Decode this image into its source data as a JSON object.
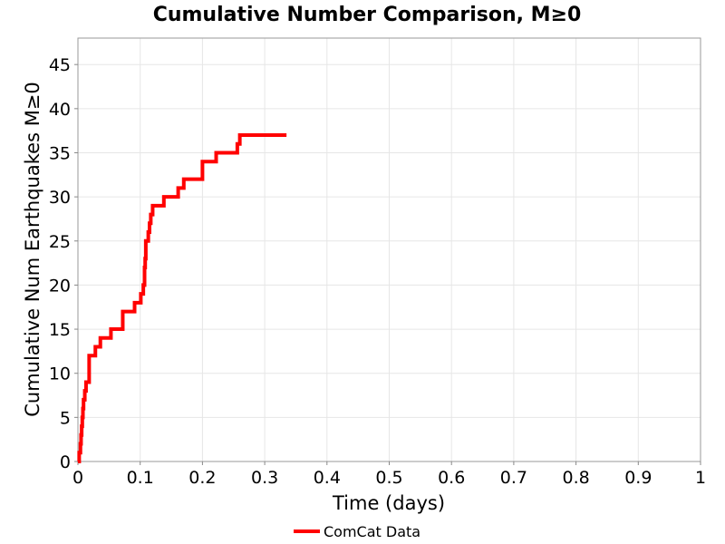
{
  "chart_data": {
    "type": "line",
    "title": "Cumulative Number Comparison, M≥0",
    "xlabel": "Time (days)",
    "ylabel": "Cumulative Num Earthquakes M≥0",
    "xlim": [
      0,
      1
    ],
    "ylim": [
      0,
      48
    ],
    "x_ticks": [
      0,
      0.1,
      0.2,
      0.3,
      0.4,
      0.5,
      0.6,
      0.7,
      0.8,
      0.9,
      1
    ],
    "x_tick_labels": [
      "0",
      "0.1",
      "0.2",
      "0.3",
      "0.4",
      "0.5",
      "0.6",
      "0.7",
      "0.8",
      "0.9",
      "1"
    ],
    "y_ticks": [
      0,
      5,
      10,
      15,
      20,
      25,
      30,
      35,
      40,
      45
    ],
    "y_tick_labels": [
      "0",
      "5",
      "10",
      "15",
      "20",
      "25",
      "30",
      "35",
      "40",
      "45"
    ],
    "grid": true,
    "legend_position": "bottom-center",
    "series": [
      {
        "name": "ComCat Data",
        "color": "#ff0000",
        "step": true,
        "x": [
          0,
          0.002,
          0.004,
          0.005,
          0.006,
          0.007,
          0.008,
          0.009,
          0.011,
          0.013,
          0.018,
          0.028,
          0.036,
          0.053,
          0.072,
          0.091,
          0.101,
          0.105,
          0.107,
          0.108,
          0.109,
          0.113,
          0.115,
          0.117,
          0.12,
          0.138,
          0.161,
          0.17,
          0.2,
          0.222,
          0.256,
          0.26,
          0.335
        ],
        "y": [
          0,
          1,
          2,
          3,
          4,
          5,
          6,
          7,
          8,
          9,
          12,
          13,
          14,
          15,
          17,
          18,
          19,
          20,
          22,
          23,
          25,
          26,
          27,
          28,
          29,
          30,
          31,
          32,
          34,
          35,
          36,
          37,
          37
        ]
      }
    ]
  }
}
